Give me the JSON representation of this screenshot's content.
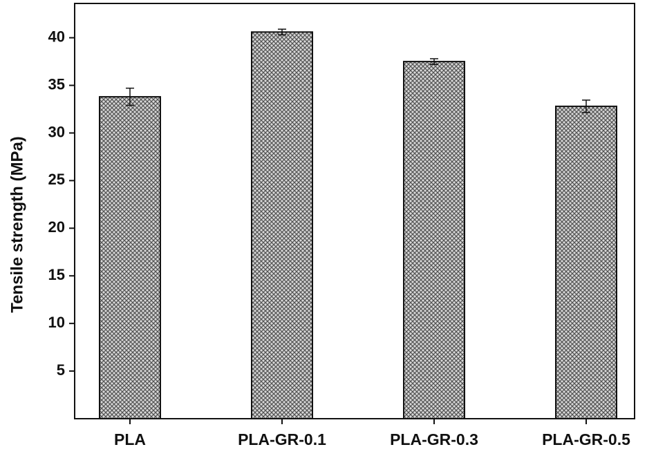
{
  "chart_data": {
    "type": "bar",
    "y_label": "Tensile strength (MPa)",
    "categories": [
      "PLA",
      "PLA-GR-0.1",
      "PLA-GR-0.3",
      "PLA-GR-0.5"
    ],
    "values": [
      33.8,
      40.6,
      37.5,
      32.8
    ],
    "errors": [
      0.9,
      0.3,
      0.3,
      0.65
    ],
    "color": "#8a8a8a",
    "ylim": [
      0,
      43.6
    ],
    "yticks": [
      5,
      10,
      15,
      20,
      25,
      30,
      35,
      40
    ]
  }
}
